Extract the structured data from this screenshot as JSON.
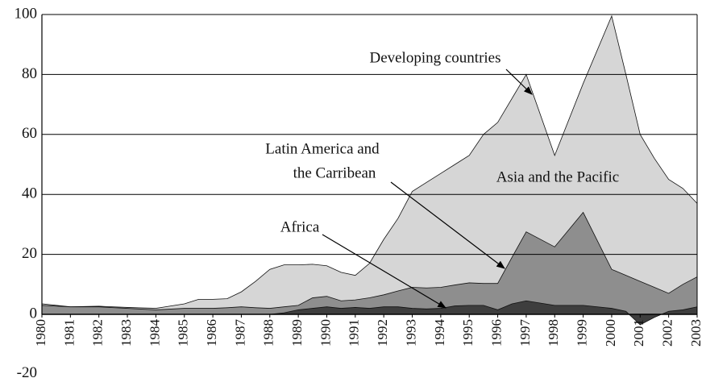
{
  "chart_data": {
    "type": "area",
    "x": [
      1980,
      1981,
      1982,
      1983,
      1984,
      1985,
      1985.5,
      1986,
      1986.5,
      1987,
      1987.5,
      1988,
      1988.5,
      1989,
      1989.5,
      1990,
      1990.5,
      1991,
      1991.5,
      1992,
      1992.5,
      1993,
      1993.5,
      1994,
      1994.5,
      1995,
      1995.5,
      1996,
      1996.5,
      1997,
      1998,
      1999,
      2000,
      2000.5,
      2001,
      2001.5,
      2002,
      2002.5,
      2003
    ],
    "series": [
      {
        "name": "Developing countries",
        "color": "#d6d6d6",
        "values": [
          3.5,
          2.5,
          2.7,
          2.3,
          2,
          3.5,
          5,
          5,
          5.2,
          7.5,
          11,
          15,
          16.5,
          16.5,
          16.7,
          16.2,
          14,
          13,
          17,
          25,
          32,
          41,
          44,
          47,
          50,
          53,
          60,
          64,
          72,
          80,
          53,
          77,
          99.5,
          80,
          60,
          52,
          45,
          42,
          37
        ]
      },
      {
        "name": "Latin America and the Carribean",
        "color": "#8e8e8e",
        "values": [
          3,
          2.5,
          2.5,
          2,
          1.5,
          2,
          2,
          2,
          2.2,
          2.5,
          2.2,
          2,
          2.5,
          3,
          5.5,
          6,
          4.5,
          4.8,
          5.5,
          6.5,
          7.8,
          9,
          8.8,
          9,
          9.8,
          10.5,
          10.3,
          10.3,
          19,
          27.5,
          22.5,
          34,
          15,
          13,
          11,
          9,
          7,
          10,
          12.5
        ]
      },
      {
        "name": "Africa",
        "color": "#3e3e3e",
        "values": [
          0,
          0,
          0,
          0,
          0,
          0,
          0,
          0,
          0,
          0,
          0,
          0,
          0.5,
          1.5,
          2,
          2.5,
          2,
          2.3,
          2,
          2.5,
          2.5,
          2,
          1.8,
          2,
          2.8,
          3,
          3,
          1.5,
          3.5,
          4.5,
          3,
          3,
          2,
          1,
          -3.5,
          -1,
          1,
          1.5,
          2.5
        ]
      }
    ],
    "annotations": [
      "Developing countries",
      "Latin America and",
      "the Carribean",
      "Asia and the Pacific",
      "Africa"
    ],
    "xlim": [
      1980,
      2003
    ],
    "xticks": [
      1980,
      1981,
      1982,
      1983,
      1984,
      1985,
      1986,
      1987,
      1988,
      1989,
      1990,
      1991,
      1992,
      1993,
      1994,
      1995,
      1996,
      1997,
      1998,
      1999,
      2000,
      2001,
      2002,
      2003
    ],
    "ylim": [
      -20,
      100
    ],
    "yticks": [
      -20,
      0,
      20,
      40,
      60,
      80,
      100
    ],
    "grid": true
  }
}
